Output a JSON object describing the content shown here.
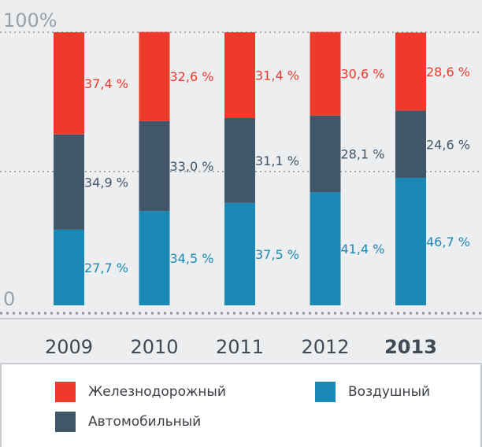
{
  "colors": {
    "rail": "#ee3a2b",
    "auto": "#42566a",
    "air": "#1a89b8",
    "grid": "#8d9399",
    "label_rail": "#ee3a2b",
    "label_auto": "#42566a",
    "label_air": "#1a89b8"
  },
  "chart_data": {
    "type": "bar",
    "stacked": true,
    "categories": [
      "2009",
      "2010",
      "2011",
      "2012",
      "2013"
    ],
    "highlight_category": "2013",
    "ylim": [
      0,
      100
    ],
    "y_tick_labels": {
      "top": "100%",
      "bottom": "0"
    },
    "grid": "dotted lines at 0, 50, 100",
    "series": [
      {
        "key": "air",
        "name": "Воздушный",
        "values": [
          27.7,
          34.5,
          37.5,
          41.4,
          46.7
        ],
        "labels": [
          "27,7 %",
          "34,5 %",
          "37,5 %",
          "41,4 %",
          "46,7 %"
        ]
      },
      {
        "key": "auto",
        "name": "Автомобильный",
        "values": [
          34.9,
          33.0,
          31.1,
          28.1,
          24.6
        ],
        "labels": [
          "34,9 %",
          "33,0 %",
          "31,1 %",
          "28,1 %",
          "24,6 %"
        ]
      },
      {
        "key": "rail",
        "name": "Железнодорожный",
        "values": [
          37.4,
          32.6,
          31.4,
          30.6,
          28.6
        ],
        "labels": [
          "37,4 %",
          "32,6 %",
          "31,4 %",
          "30,6 %",
          "28,6 %"
        ]
      }
    ]
  },
  "legend": {
    "rail": "Железнодорожный",
    "air": "Воздушный",
    "auto": "Автомобильный"
  }
}
